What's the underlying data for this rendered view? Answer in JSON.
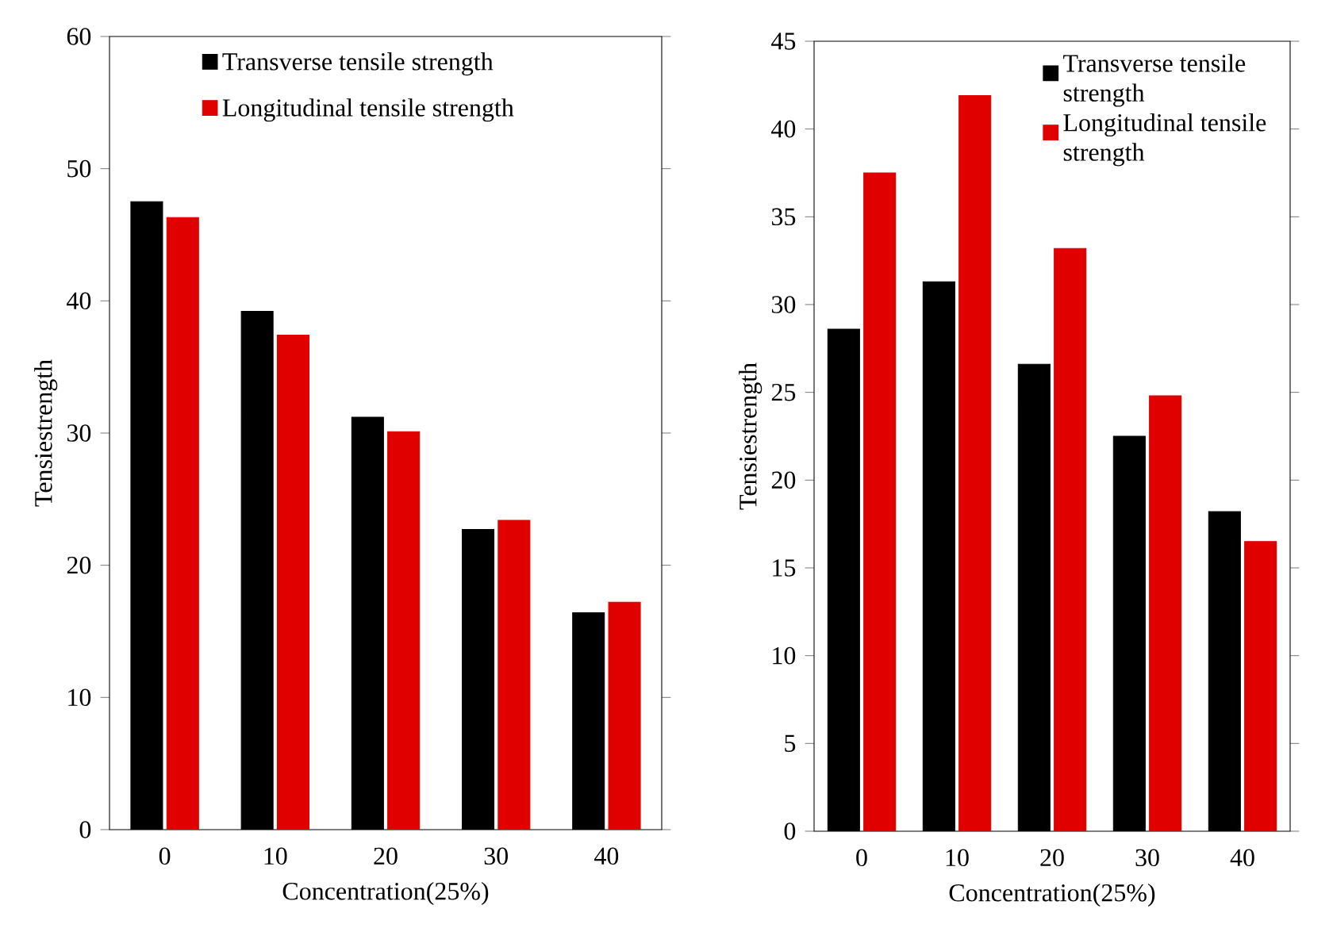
{
  "chart_data": [
    {
      "type": "bar",
      "xlabel": "Concentration(25%)",
      "ylabel": "Tensiestrength",
      "categories": [
        "0",
        "10",
        "20",
        "30",
        "40"
      ],
      "ylim": [
        0,
        60
      ],
      "yticks": [
        0,
        10,
        20,
        30,
        40,
        50,
        60
      ],
      "legend": "top right",
      "series": [
        {
          "name": "Transverse tensile strength",
          "color": "#000000",
          "values": [
            47.5,
            39.2,
            31.2,
            22.7,
            16.4
          ]
        },
        {
          "name": "Longitudinal tensile strength",
          "color": "#e00000",
          "values": [
            46.3,
            37.4,
            30.1,
            23.4,
            17.2
          ]
        }
      ]
    },
    {
      "type": "bar",
      "xlabel": "Concentration(25%)",
      "ylabel": "Tensiestrength",
      "categories": [
        "0",
        "10",
        "20",
        "30",
        "40"
      ],
      "ylim": [
        0,
        45
      ],
      "yticks": [
        0,
        5,
        10,
        15,
        20,
        25,
        30,
        35,
        40,
        45
      ],
      "legend": "top right",
      "series": [
        {
          "name": "Transverse tensile strength",
          "color": "#000000",
          "values": [
            28.6,
            31.3,
            26.6,
            22.5,
            18.2
          ]
        },
        {
          "name": "Longitudinal tensile strength",
          "color": "#e00000",
          "values": [
            37.5,
            41.9,
            33.2,
            24.8,
            16.5
          ]
        }
      ]
    }
  ]
}
